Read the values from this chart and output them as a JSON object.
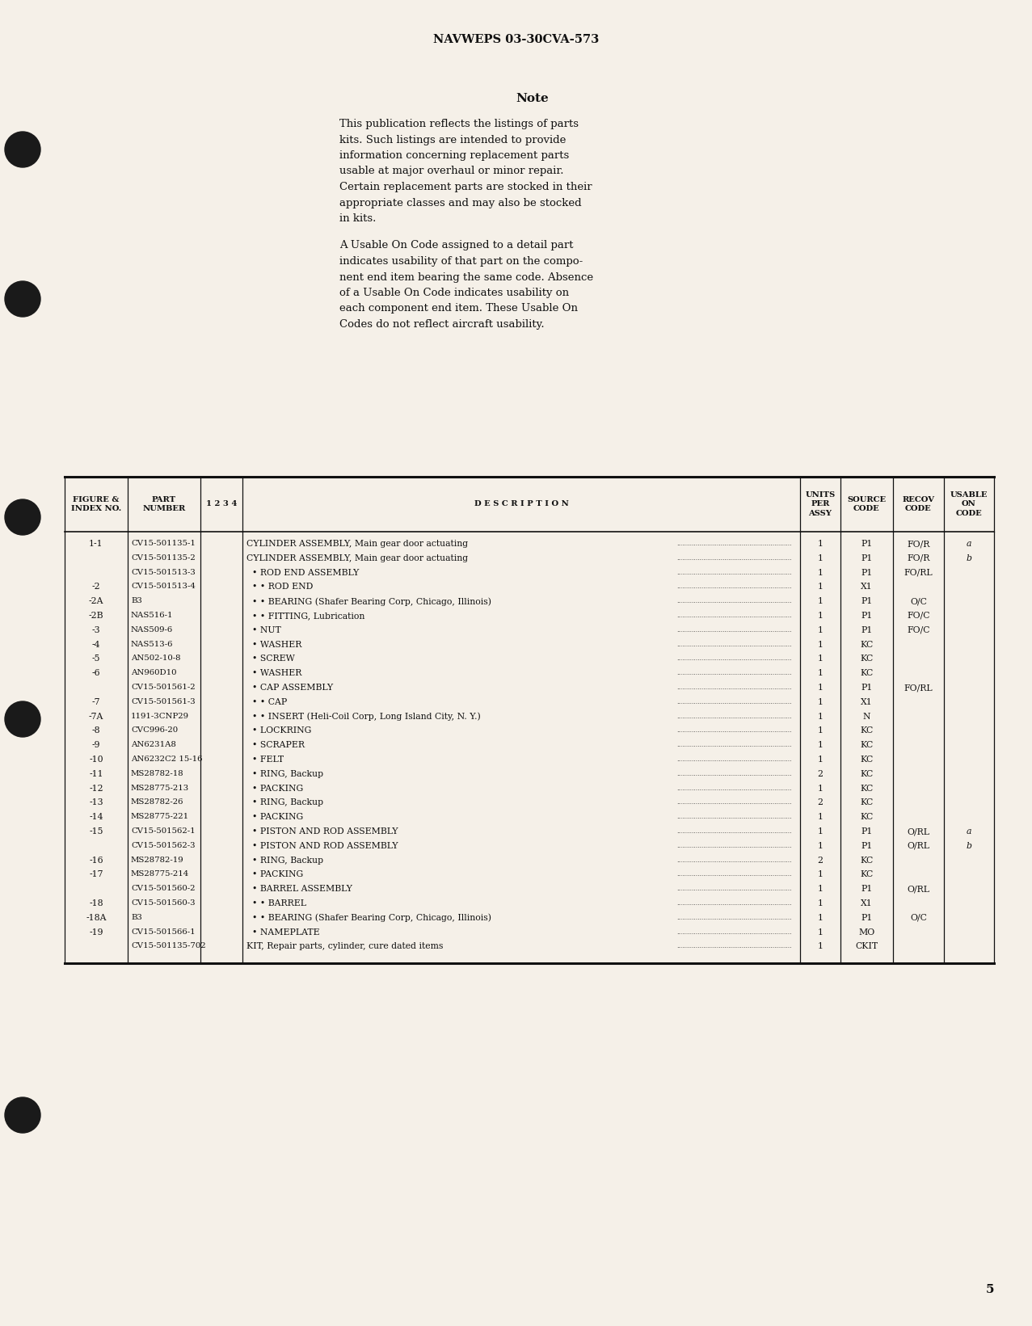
{
  "page_title": "NAVWEPS 03-30CVA-573",
  "page_number": "5",
  "background_color": "#f5f0e8",
  "note_title": "Note",
  "note_para1_lines": [
    "This publication reflects the listings of parts",
    "kits. Such listings are intended to provide",
    "information concerning replacement parts",
    "usable at major overhaul or minor repair.",
    "Certain replacement parts are stocked in their",
    "appropriate classes and may also be stocked",
    "in kits."
  ],
  "note_para2_lines": [
    "A Usable On Code assigned to a detail part",
    "indicates usability of that part on the compo-",
    "nent end item bearing the same code. Absence",
    "of a Usable On Code indicates usability on",
    "each component end item. These Usable On",
    "Codes do not reflect aircraft usability."
  ],
  "table_rows": [
    [
      "1-1",
      "CV15-501135-1",
      "CYLINDER ASSEMBLY, Main gear door actuating",
      "1",
      "P1",
      "FO/R",
      "a"
    ],
    [
      "",
      "CV15-501135-2",
      "CYLINDER ASSEMBLY, Main gear door actuating",
      "1",
      "P1",
      "FO/R",
      "b"
    ],
    [
      "",
      "CV15-501513-3",
      "  • ROD END ASSEMBLY",
      "1",
      "P1",
      "FO/RL",
      ""
    ],
    [
      "-2",
      "CV15-501513-4",
      "  • • ROD END",
      "1",
      "X1",
      "",
      ""
    ],
    [
      "-2A",
      "B3",
      "  • • BEARING (Shafer Bearing Corp, Chicago, Illinois)",
      "1",
      "P1",
      "O/C",
      ""
    ],
    [
      "-2B",
      "NAS516-1",
      "  • • FITTING, Lubrication",
      "1",
      "P1",
      "FO/C",
      ""
    ],
    [
      "-3",
      "NAS509-6",
      "  • NUT",
      "1",
      "P1",
      "FO/C",
      ""
    ],
    [
      "-4",
      "NAS513-6",
      "  • WASHER",
      "1",
      "KC",
      "",
      ""
    ],
    [
      "-5",
      "AN502-10-8",
      "  • SCREW",
      "1",
      "KC",
      "",
      ""
    ],
    [
      "-6",
      "AN960D10",
      "  • WASHER",
      "1",
      "KC",
      "",
      ""
    ],
    [
      "",
      "CV15-501561-2",
      "  • CAP ASSEMBLY",
      "1",
      "P1",
      "FO/RL",
      ""
    ],
    [
      "-7",
      "CV15-501561-3",
      "  • • CAP",
      "1",
      "X1",
      "",
      ""
    ],
    [
      "-7A",
      "1191-3CNP29",
      "  • • INSERT (Heli-Coil Corp, Long Island City, N. Y.)",
      "1",
      "N",
      "",
      ""
    ],
    [
      "-8",
      "CVC996-20",
      "  • LOCKRING",
      "1",
      "KC",
      "",
      ""
    ],
    [
      "-9",
      "AN6231A8",
      "  • SCRAPER",
      "1",
      "KC",
      "",
      ""
    ],
    [
      "-10",
      "AN6232C2 15-16",
      "  • FELT",
      "1",
      "KC",
      "",
      ""
    ],
    [
      "-11",
      "MS28782-18",
      "  • RING, Backup",
      "2",
      "KC",
      "",
      ""
    ],
    [
      "-12",
      "MS28775-213",
      "  • PACKING",
      "1",
      "KC",
      "",
      ""
    ],
    [
      "-13",
      "MS28782-26",
      "  • RING, Backup",
      "2",
      "KC",
      "",
      ""
    ],
    [
      "-14",
      "MS28775-221",
      "  • PACKING",
      "1",
      "KC",
      "",
      ""
    ],
    [
      "-15",
      "CV15-501562-1",
      "  • PISTON AND ROD ASSEMBLY",
      "1",
      "P1",
      "O/RL",
      "a"
    ],
    [
      "",
      "CV15-501562-3",
      "  • PISTON AND ROD ASSEMBLY",
      "1",
      "P1",
      "O/RL",
      "b"
    ],
    [
      "-16",
      "MS28782-19",
      "  • RING, Backup",
      "2",
      "KC",
      "",
      ""
    ],
    [
      "-17",
      "MS28775-214",
      "  • PACKING",
      "1",
      "KC",
      "",
      ""
    ],
    [
      "",
      "CV15-501560-2",
      "  • BARREL ASSEMBLY",
      "1",
      "P1",
      "O/RL",
      ""
    ],
    [
      "-18",
      "CV15-501560-3",
      "  • • BARREL",
      "1",
      "X1",
      "",
      ""
    ],
    [
      "-18A",
      "B3",
      "  • • BEARING (Shafer Bearing Corp, Chicago, Illinois)",
      "1",
      "P1",
      "O/C",
      ""
    ],
    [
      "-19",
      "CV15-501566-1",
      "  • NAMEPLATE",
      "1",
      "MO",
      "",
      ""
    ],
    [
      "",
      "CV15-501135-702",
      "KIT, Repair parts, cylinder, cure dated items",
      "1",
      "CKIT",
      "",
      ""
    ]
  ]
}
